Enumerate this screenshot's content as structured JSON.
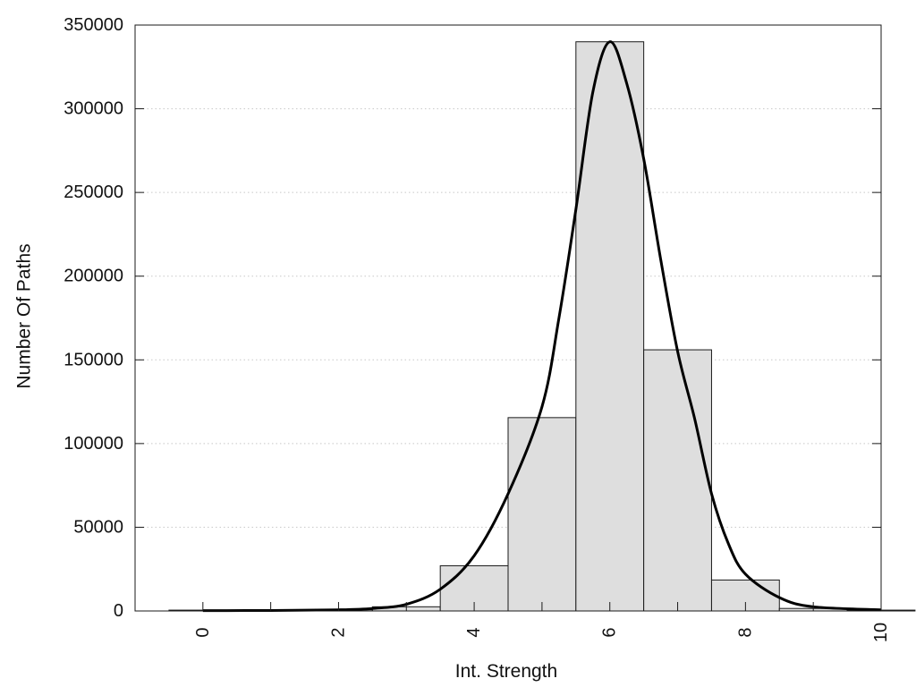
{
  "chart_data": {
    "type": "bar",
    "title": "",
    "xlabel": "Int. Strength",
    "ylabel": "Number Of Paths",
    "xlim": [
      -1,
      10
    ],
    "ylim": [
      0,
      350000
    ],
    "grid": true,
    "legend": "none",
    "x_ticks": [
      "0",
      "2",
      "4",
      "6",
      "8",
      "10"
    ],
    "y_ticks": [
      "0",
      "50000",
      "100000",
      "150000",
      "200000",
      "250000",
      "300000",
      "350000"
    ],
    "bins": [
      {
        "x": 0,
        "value": 500
      },
      {
        "x": 1,
        "value": 500
      },
      {
        "x": 2,
        "value": 700
      },
      {
        "x": 3,
        "value": 2500
      },
      {
        "x": 4,
        "value": 27000
      },
      {
        "x": 5,
        "value": 115500
      },
      {
        "x": 6,
        "value": 340000
      },
      {
        "x": 7,
        "value": 156000
      },
      {
        "x": 8,
        "value": 18500
      },
      {
        "x": 9,
        "value": 1500
      },
      {
        "x": 10,
        "value": 500
      }
    ],
    "curve": {
      "x": [
        0,
        1,
        2,
        2.5,
        3,
        3.5,
        4,
        4.5,
        5,
        5.25,
        5.5,
        5.75,
        6,
        6.25,
        6.5,
        6.75,
        7,
        7.25,
        7.5,
        7.75,
        8,
        8.5,
        9,
        10
      ],
      "y": [
        200,
        300,
        700,
        1500,
        4000,
        13000,
        33000,
        70000,
        122000,
        175000,
        240000,
        310000,
        340000,
        315000,
        270000,
        210000,
        155000,
        115000,
        70000,
        40000,
        22000,
        8000,
        2500,
        700
      ]
    },
    "colors": {
      "bar_fill": "#dedede",
      "bar_edge": "#1a1a1a",
      "curve": "#000000",
      "grid": "#c8c8c8"
    }
  }
}
